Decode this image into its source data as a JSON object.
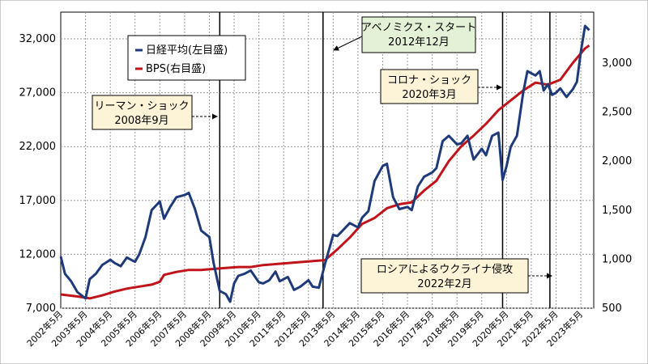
{
  "chart_data": {
    "type": "line",
    "title": "",
    "xlabel": "",
    "categories": [
      "2002年5月",
      "2003年5月",
      "2004年5月",
      "2005年5月",
      "2006年5月",
      "2007年5月",
      "2008年5月",
      "2009年5月",
      "2010年5月",
      "2011年5月",
      "2012年5月",
      "2013年5月",
      "2014年5月",
      "2015年5月",
      "2016年5月",
      "2017年5月",
      "2018年5月",
      "2019年5月",
      "2020年5月",
      "2021年5月",
      "2022年5月",
      "2023年5月"
    ],
    "y_left": {
      "ticks": [
        "7,000",
        "12,000",
        "17,000",
        "22,000",
        "27,000",
        "32,000"
      ],
      "tick_values": [
        7000,
        12000,
        17000,
        22000,
        27000,
        32000
      ],
      "range": [
        7000,
        32000
      ]
    },
    "y_right": {
      "ticks": [
        "500",
        "1,000",
        "1,500",
        "2,000",
        "2,500",
        "3,000"
      ],
      "tick_values": [
        500,
        1000,
        1500,
        2000,
        2500,
        3000
      ],
      "range": [
        500,
        3200
      ]
    },
    "grid": true,
    "legend_position": "top-left",
    "series": [
      {
        "name": "日経平均(左目盛)",
        "axis": "left",
        "color": "#1f3a7a",
        "x": [
          2002.33,
          2002.5,
          2002.75,
          2003.0,
          2003.33,
          2003.5,
          2003.75,
          2004.0,
          2004.33,
          2004.5,
          2004.75,
          2005.0,
          2005.33,
          2005.5,
          2005.75,
          2006.0,
          2006.33,
          2006.5,
          2006.75,
          2007.0,
          2007.33,
          2007.5,
          2007.75,
          2008.0,
          2008.33,
          2008.5,
          2008.75,
          2009.0,
          2009.17,
          2009.33,
          2009.5,
          2009.75,
          2010.0,
          2010.33,
          2010.5,
          2010.75,
          2011.0,
          2011.17,
          2011.5,
          2011.75,
          2012.0,
          2012.33,
          2012.5,
          2012.75,
          2012.92,
          2013.0,
          2013.33,
          2013.5,
          2013.75,
          2014.0,
          2014.33,
          2014.5,
          2014.75,
          2015.0,
          2015.33,
          2015.5,
          2015.75,
          2016.0,
          2016.33,
          2016.5,
          2016.75,
          2017.0,
          2017.33,
          2017.5,
          2017.75,
          2018.0,
          2018.33,
          2018.5,
          2018.75,
          2019.0,
          2019.33,
          2019.5,
          2019.75,
          2020.0,
          2020.17,
          2020.33,
          2020.5,
          2020.75,
          2021.0,
          2021.17,
          2021.33,
          2021.5,
          2021.67,
          2021.83,
          2022.0,
          2022.17,
          2022.33,
          2022.5,
          2022.75,
          2023.0,
          2023.17,
          2023.33,
          2023.5,
          2023.67
        ],
        "values": [
          11800,
          10200,
          9500,
          8500,
          7900,
          9700,
          10200,
          11000,
          11500,
          11200,
          10900,
          11700,
          11300,
          12000,
          13600,
          16100,
          16900,
          15300,
          16400,
          17300,
          17500,
          17700,
          16200,
          14200,
          13600,
          11200,
          8600,
          8300,
          7600,
          9300,
          10000,
          10200,
          10500,
          9400,
          9300,
          9600,
          10400,
          9500,
          9900,
          8700,
          9000,
          9600,
          9000,
          8900,
          10400,
          11100,
          13800,
          13700,
          14300,
          14900,
          14500,
          15400,
          16000,
          18800,
          20200,
          20400,
          17300,
          16200,
          16400,
          16100,
          18300,
          19200,
          19600,
          20000,
          22500,
          23000,
          22200,
          22300,
          23000,
          20800,
          21800,
          21200,
          23000,
          23300,
          18900,
          20200,
          22000,
          23000,
          27000,
          29000,
          28800,
          28600,
          29000,
          27200,
          27800,
          26800,
          27000,
          27400,
          26600,
          27300,
          28000,
          30800,
          33200,
          32800
        ]
      },
      {
        "name": "BPS(右目盛)",
        "axis": "right",
        "color": "#c0141a",
        "x": [
          2002.33,
          2003.0,
          2003.5,
          2004.0,
          2004.5,
          2005.0,
          2005.5,
          2006.0,
          2006.33,
          2006.5,
          2007.0,
          2007.5,
          2008.0,
          2008.5,
          2009.0,
          2009.5,
          2010.0,
          2010.5,
          2011.0,
          2011.5,
          2012.0,
          2012.5,
          2013.0,
          2013.5,
          2014.0,
          2014.5,
          2015.0,
          2015.5,
          2016.0,
          2016.5,
          2017.0,
          2017.5,
          2018.0,
          2018.5,
          2019.0,
          2019.5,
          2020.0,
          2020.5,
          2021.0,
          2021.5,
          2022.0,
          2022.5,
          2023.0,
          2023.5,
          2023.67
        ],
        "values": [
          640,
          620,
          600,
          630,
          670,
          700,
          720,
          740,
          770,
          840,
          870,
          890,
          890,
          900,
          910,
          920,
          920,
          940,
          950,
          960,
          970,
          980,
          990,
          1100,
          1220,
          1360,
          1420,
          1520,
          1560,
          1580,
          1700,
          1800,
          2000,
          2150,
          2260,
          2380,
          2520,
          2620,
          2720,
          2800,
          2780,
          2830,
          3000,
          3150,
          3180
        ]
      }
    ],
    "annotations": [
      {
        "text_lines": [
          "リーマン・ショック",
          "2008年9月"
        ],
        "x": 2008.75
      },
      {
        "text_lines": [
          "アベノミクス・スタート",
          "2012年12月"
        ],
        "x": 2012.92
      },
      {
        "text_lines": [
          "コロナ・ショック",
          "2020年3月"
        ],
        "x": 2020.17
      },
      {
        "text_lines": [
          "ロシアによるウクライナ侵攻",
          "2022年2月"
        ],
        "x": 2022.08
      }
    ]
  }
}
